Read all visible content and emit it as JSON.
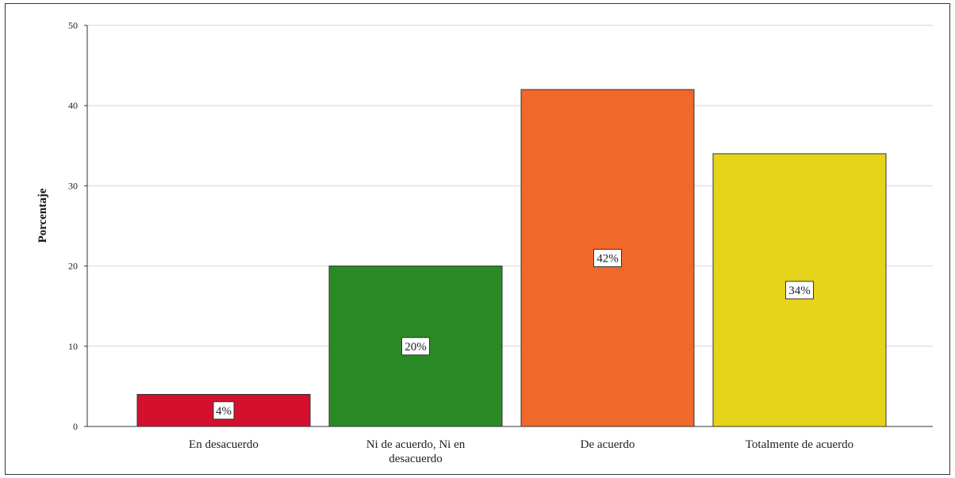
{
  "chart_data": {
    "type": "bar",
    "categories": [
      [
        "En desacuerdo"
      ],
      [
        "Ni de acuerdo, Ni en",
        "desacuerdo"
      ],
      [
        "De acuerdo"
      ],
      [
        "Totalmente de acuerdo"
      ]
    ],
    "values": [
      4,
      20,
      42,
      34
    ],
    "data_labels": [
      "4%",
      "20%",
      "42%",
      "34%"
    ],
    "colors": [
      "#d4102e",
      "#2a8a26",
      "#f0682a",
      "#e5d419"
    ],
    "ylabel": "Porcentaje",
    "xlabel": "",
    "ylim": [
      0,
      50
    ],
    "yticks": [
      0,
      10,
      20,
      30,
      40,
      50
    ],
    "grid": true
  }
}
